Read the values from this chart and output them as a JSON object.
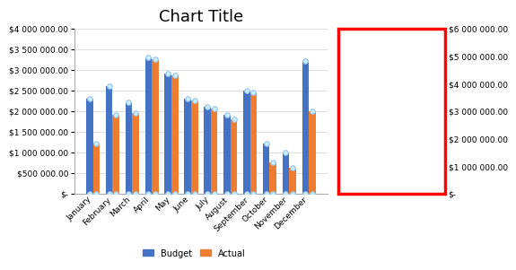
{
  "title": "Chart Title",
  "months": [
    "January",
    "February",
    "March",
    "April",
    "May",
    "June",
    "July",
    "August",
    "September",
    "October",
    "November",
    "December"
  ],
  "budget": [
    2300000,
    2600000,
    2200000,
    3300000,
    2900000,
    2300000,
    2100000,
    1900000,
    2500000,
    1200000,
    1000000,
    3200000
  ],
  "actual": [
    1200000,
    1900000,
    1950000,
    3250000,
    2850000,
    2250000,
    2050000,
    1800000,
    2450000,
    750000,
    620000,
    2000000
  ],
  "budget_color": "#4472c4",
  "actual_color": "#ed7d31",
  "background_color": "#ffffff",
  "left_ylim": [
    0,
    4000000
  ],
  "right_ylim": [
    0,
    6000000
  ],
  "left_yticks": [
    0,
    500000,
    1000000,
    1500000,
    2000000,
    2500000,
    3000000,
    3500000,
    4000000
  ],
  "right_yticks": [
    0,
    1000000,
    2000000,
    3000000,
    4000000,
    5000000,
    6000000
  ],
  "legend_labels": [
    "Budget",
    "Actual"
  ],
  "bar_width": 0.35,
  "marker": "o",
  "marker_size": 4,
  "marker_color": "#c6efff",
  "marker_edge_color": "#9dc3e6",
  "red_box_color": "#ff0000",
  "grid_color": "#d9d9d9",
  "title_fontsize": 13,
  "tick_fontsize": 6.5
}
